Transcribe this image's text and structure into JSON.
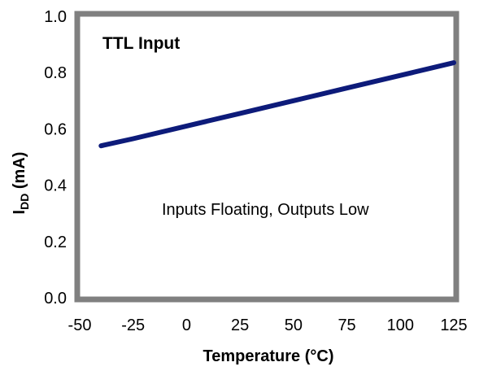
{
  "chart_data": {
    "type": "line",
    "title": "",
    "xlabel": "Temperature (°C)",
    "ylabel_main": "I",
    "ylabel_sub": "DD",
    "ylabel_tail": " (mA)",
    "xlim": [
      -50,
      125
    ],
    "ylim": [
      0.0,
      1.0
    ],
    "x_ticks": [
      "-50",
      "-25",
      "0",
      "25",
      "50",
      "75",
      "100",
      "125"
    ],
    "y_ticks": [
      "0.0",
      "0.2",
      "0.4",
      "0.6",
      "0.8",
      "1.0"
    ],
    "grid": false,
    "annotations": {
      "panel_label": "TTL Input",
      "condition": "Inputs Floating, Outputs Low"
    },
    "series": [
      {
        "color": "#0d1b7a",
        "x": [
          -40,
          -25,
          0,
          25,
          50,
          75,
          100,
          125
        ],
        "y": [
          0.54,
          0.565,
          0.61,
          0.655,
          0.7,
          0.745,
          0.79,
          0.835
        ]
      }
    ],
    "frame_color": "#808080"
  }
}
